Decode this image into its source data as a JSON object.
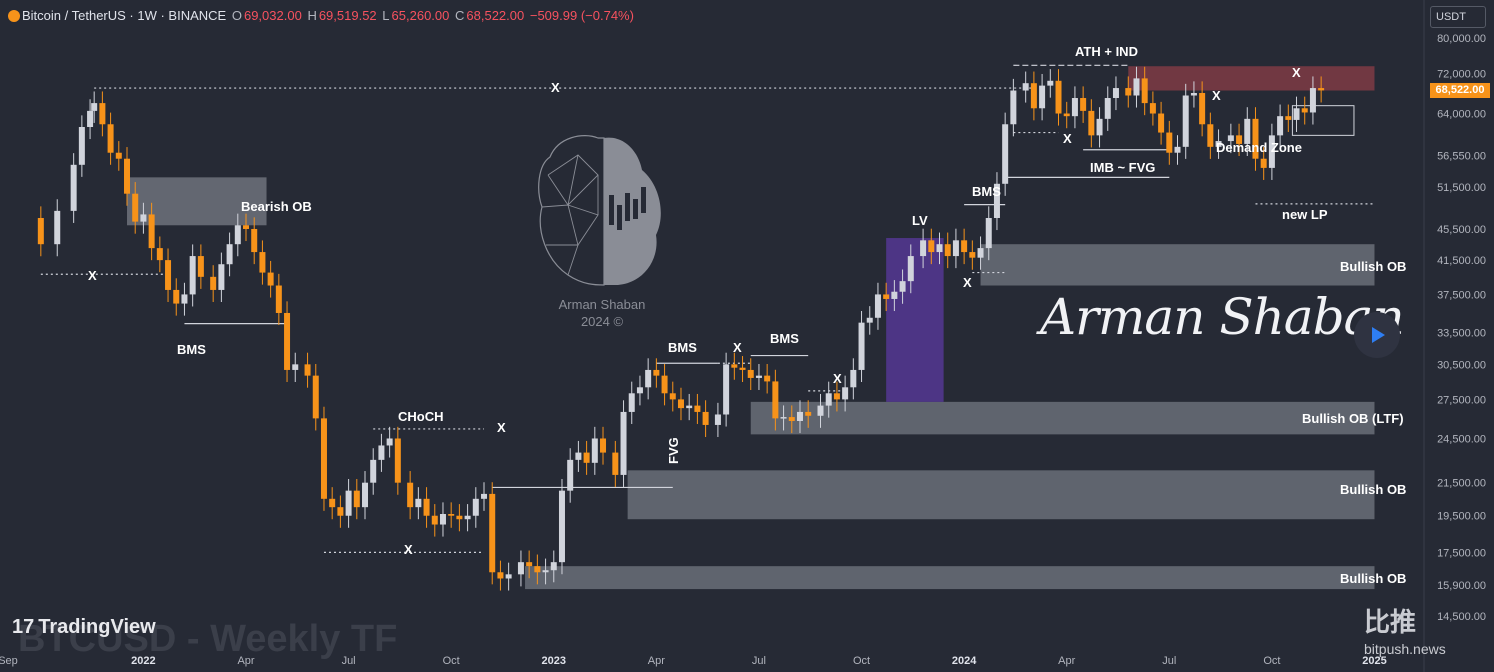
{
  "header": {
    "symbol": "Bitcoin / TetherUS · 1W · BINANCE",
    "open_label": "O",
    "open": "69,032.00",
    "high_label": "H",
    "high": "69,519.52",
    "low_label": "L",
    "low": "65,260.00",
    "close_label": "C",
    "close": "68,522.00",
    "change": "−509.99 (−0.74%)"
  },
  "currency_button": "USDT",
  "last_price_tag": "68,522.00",
  "branding": {
    "tradingview": "TradingView",
    "watermark": "BTCUSD - Weekly TF",
    "author_caption_line1": "Arman Shaban",
    "author_caption_line2": "2024 ©",
    "signature": "Arman Shaban",
    "bitpush_cn": "比推",
    "bitpush_url": "bitpush.news"
  },
  "colors": {
    "background": "#262a35",
    "bull": "#d1d4dc",
    "bear": "#f7931a",
    "zone": "#6a6e78",
    "supply_zone": "#7a3a44",
    "lv_zone": "#5b3aa0",
    "accent_play": "#2e7ef2"
  },
  "chart_data": {
    "type": "candlestick",
    "interval": "1W",
    "y_scale": "log",
    "y_axis_ticks": [
      80000,
      72000,
      64000,
      56550,
      51500,
      45500,
      41500,
      37500,
      33500,
      30500,
      27500,
      24500,
      21500,
      19500,
      17500,
      15900,
      14500
    ],
    "y_axis_tick_labels": [
      "80,000.00",
      "72,000.00",
      "64,000.00",
      "56,550.00",
      "51,500.00",
      "45,500.00",
      "41,500.00",
      "37,500.00",
      "33,500.00",
      "30,500.00",
      "27,500.00",
      "24,500.00",
      "21,500.00",
      "19,500.00",
      "17,500.00",
      "15,900.00",
      "14,500.00"
    ],
    "x_axis_labels": [
      "Sep",
      "2022",
      "Apr",
      "Jul",
      "Oct",
      "2023",
      "Apr",
      "Jul",
      "Oct",
      "2024",
      "Apr",
      "Jul",
      "Oct",
      "2025"
    ],
    "ohlc_latest": {
      "open": 69032.0,
      "high": 69519.52,
      "low": 65260.0,
      "close": 68522.0
    },
    "price_path": [
      [
        2021.69,
        47000
      ],
      [
        2021.75,
        43500
      ],
      [
        2021.79,
        48000
      ],
      [
        2021.83,
        55000
      ],
      [
        2021.85,
        61500
      ],
      [
        2021.87,
        64500
      ],
      [
        2021.88,
        66000
      ],
      [
        2021.9,
        62000
      ],
      [
        2021.92,
        57000
      ],
      [
        2021.94,
        56000
      ],
      [
        2021.96,
        50500
      ],
      [
        2021.98,
        46500
      ],
      [
        2022.0,
        47500
      ],
      [
        2022.02,
        43000
      ],
      [
        2022.04,
        41500
      ],
      [
        2022.06,
        38000
      ],
      [
        2022.08,
        36500
      ],
      [
        2022.1,
        37500
      ],
      [
        2022.12,
        42000
      ],
      [
        2022.14,
        39500
      ],
      [
        2022.17,
        38000
      ],
      [
        2022.19,
        41000
      ],
      [
        2022.21,
        43500
      ],
      [
        2022.23,
        46000
      ],
      [
        2022.25,
        45500
      ],
      [
        2022.27,
        42500
      ],
      [
        2022.29,
        40000
      ],
      [
        2022.31,
        38500
      ],
      [
        2022.33,
        35500
      ],
      [
        2022.35,
        30000
      ],
      [
        2022.37,
        30500
      ],
      [
        2022.4,
        29500
      ],
      [
        2022.42,
        26000
      ],
      [
        2022.44,
        20500
      ],
      [
        2022.46,
        20000
      ],
      [
        2022.48,
        19500
      ],
      [
        2022.5,
        21000
      ],
      [
        2022.52,
        20000
      ],
      [
        2022.54,
        21500
      ],
      [
        2022.56,
        23000
      ],
      [
        2022.58,
        24000
      ],
      [
        2022.6,
        24500
      ],
      [
        2022.62,
        21500
      ],
      [
        2022.65,
        20000
      ],
      [
        2022.67,
        20500
      ],
      [
        2022.69,
        19500
      ],
      [
        2022.71,
        19000
      ],
      [
        2022.73,
        19600
      ],
      [
        2022.75,
        19500
      ],
      [
        2022.77,
        19300
      ],
      [
        2022.79,
        19500
      ],
      [
        2022.81,
        20500
      ],
      [
        2022.83,
        20800
      ],
      [
        2022.85,
        16500
      ],
      [
        2022.87,
        16200
      ],
      [
        2022.89,
        16400
      ],
      [
        2022.92,
        17000
      ],
      [
        2022.94,
        16800
      ],
      [
        2022.96,
        16500
      ],
      [
        2022.98,
        16600
      ],
      [
        2023.0,
        17000
      ],
      [
        2023.02,
        21000
      ],
      [
        2023.04,
        23000
      ],
      [
        2023.06,
        23500
      ],
      [
        2023.08,
        22800
      ],
      [
        2023.1,
        24500
      ],
      [
        2023.12,
        23500
      ],
      [
        2023.15,
        22000
      ],
      [
        2023.17,
        26500
      ],
      [
        2023.19,
        28000
      ],
      [
        2023.21,
        28500
      ],
      [
        2023.23,
        30000
      ],
      [
        2023.25,
        29500
      ],
      [
        2023.27,
        28000
      ],
      [
        2023.29,
        27500
      ],
      [
        2023.31,
        26800
      ],
      [
        2023.33,
        27000
      ],
      [
        2023.35,
        26500
      ],
      [
        2023.37,
        25500
      ],
      [
        2023.4,
        26300
      ],
      [
        2023.42,
        30500
      ],
      [
        2023.44,
        30200
      ],
      [
        2023.46,
        30000
      ],
      [
        2023.48,
        29300
      ],
      [
        2023.5,
        29500
      ],
      [
        2023.52,
        29000
      ],
      [
        2023.54,
        26000
      ],
      [
        2023.56,
        26100
      ],
      [
        2023.58,
        25800
      ],
      [
        2023.6,
        26500
      ],
      [
        2023.62,
        26200
      ],
      [
        2023.65,
        27000
      ],
      [
        2023.67,
        28000
      ],
      [
        2023.69,
        27500
      ],
      [
        2023.71,
        28500
      ],
      [
        2023.73,
        30000
      ],
      [
        2023.75,
        34500
      ],
      [
        2023.77,
        35000
      ],
      [
        2023.79,
        37500
      ],
      [
        2023.81,
        37000
      ],
      [
        2023.83,
        37800
      ],
      [
        2023.85,
        39000
      ],
      [
        2023.87,
        42000
      ],
      [
        2023.9,
        44000
      ],
      [
        2023.92,
        42500
      ],
      [
        2023.94,
        43500
      ],
      [
        2023.96,
        42000
      ],
      [
        2023.98,
        44000
      ],
      [
        2024.0,
        42500
      ],
      [
        2024.02,
        41800
      ],
      [
        2024.04,
        43000
      ],
      [
        2024.06,
        47000
      ],
      [
        2024.08,
        52000
      ],
      [
        2024.1,
        62000
      ],
      [
        2024.12,
        68500
      ],
      [
        2024.15,
        70000
      ],
      [
        2024.17,
        65000
      ],
      [
        2024.19,
        69500
      ],
      [
        2024.21,
        70500
      ],
      [
        2024.23,
        64000
      ],
      [
        2024.25,
        63500
      ],
      [
        2024.27,
        67000
      ],
      [
        2024.29,
        64500
      ],
      [
        2024.31,
        60000
      ],
      [
        2024.33,
        63000
      ],
      [
        2024.35,
        67000
      ],
      [
        2024.37,
        69000
      ],
      [
        2024.4,
        67500
      ],
      [
        2024.42,
        71000
      ],
      [
        2024.44,
        66000
      ],
      [
        2024.46,
        64000
      ],
      [
        2024.48,
        60500
      ],
      [
        2024.5,
        57000
      ],
      [
        2024.52,
        58000
      ],
      [
        2024.54,
        67500
      ],
      [
        2024.56,
        68000
      ],
      [
        2024.58,
        62000
      ],
      [
        2024.6,
        58000
      ],
      [
        2024.62,
        59000
      ],
      [
        2024.65,
        60000
      ],
      [
        2024.67,
        58500
      ],
      [
        2024.69,
        63000
      ],
      [
        2024.71,
        56000
      ],
      [
        2024.73,
        54500
      ],
      [
        2024.75,
        60000
      ],
      [
        2024.77,
        63500
      ],
      [
        2024.79,
        62800
      ],
      [
        2024.81,
        65000
      ],
      [
        2024.83,
        64200
      ],
      [
        2024.85,
        69000
      ],
      [
        2024.87,
        68522
      ]
    ],
    "annotations": [
      "ATH + IND",
      "Bearish OB",
      "BMS",
      "BMS",
      "BMS",
      "BMS",
      "CHoCH",
      "FVG",
      "LV",
      "IMB ~ FVG",
      "Demand Zone",
      "new LP",
      "Bullish OB",
      "Bullish OB (LTF)",
      "Bullish OB",
      "Bullish OB",
      "X",
      "X",
      "X",
      "X",
      "X",
      "X",
      "X",
      "X",
      "X",
      "X"
    ],
    "zones": [
      {
        "label": "Bearish OB",
        "kind": "bearish-ob",
        "price_low": 46000,
        "price_high": 53000,
        "from": 2021.96,
        "to": 2022.3
      },
      {
        "label": "Bullish OB",
        "kind": "bullish-ob",
        "price_low": 38500,
        "price_high": 43500,
        "from": 2024.04,
        "to": 2025.0
      },
      {
        "label": "Bullish OB (LTF)",
        "kind": "bullish-ob",
        "price_low": 24800,
        "price_high": 27300,
        "from": 2023.48,
        "to": 2025.0
      },
      {
        "label": "Bullish OB",
        "kind": "bullish-ob",
        "price_low": 19300,
        "price_high": 22300,
        "from": 2023.18,
        "to": 2025.0
      },
      {
        "label": "Bullish OB",
        "kind": "bullish-ob",
        "price_low": 15700,
        "price_high": 16800,
        "from": 2022.93,
        "to": 2025.0
      },
      {
        "label": "",
        "kind": "supply",
        "price_low": 68500,
        "price_high": 73600,
        "from": 2024.4,
        "to": 2025.0
      },
      {
        "label": "LV",
        "kind": "lv",
        "price_low": 27300,
        "price_high": 44300,
        "from": 2023.81,
        "to": 2023.95
      },
      {
        "label": "Demand Zone",
        "kind": "demand",
        "price_low": 60000,
        "price_high": 65500,
        "from": 2024.8,
        "to": 2024.95
      }
    ],
    "levels": [
      {
        "label": "X",
        "price": 69000,
        "from": 2021.88,
        "to": 2024.17,
        "style": "dotted"
      },
      {
        "label": "X",
        "price": 39800,
        "from": 2021.75,
        "to": 2022.06,
        "style": "dotted"
      },
      {
        "label": "BMS",
        "price": 34400,
        "from": 2022.1,
        "to": 2022.35,
        "style": "solid"
      },
      {
        "label": "CHoCH",
        "price": 25200,
        "from": 2022.56,
        "to": 2022.83,
        "style": "dotted"
      },
      {
        "label": "X",
        "price": 17500,
        "from": 2022.44,
        "to": 2022.83,
        "style": "dotted"
      },
      {
        "label": "",
        "price": 21200,
        "from": 2022.85,
        "to": 2023.29,
        "style": "solid"
      },
      {
        "label": "BMS",
        "price": 30600,
        "from": 2023.25,
        "to": 2023.4,
        "style": "solid"
      },
      {
        "label": "X",
        "price": 30600,
        "from": 2023.4,
        "to": 2023.48,
        "style": "dotted"
      },
      {
        "label": "BMS",
        "price": 31300,
        "from": 2023.48,
        "to": 2023.62,
        "style": "solid"
      },
      {
        "label": "X",
        "price": 28200,
        "from": 2023.62,
        "to": 2023.71,
        "style": "dotted"
      },
      {
        "label": "X",
        "price": 40000,
        "from": 2024.02,
        "to": 2024.1,
        "style": "dotted"
      },
      {
        "label": "BMS",
        "price": 48900,
        "from": 2024.0,
        "to": 2024.1,
        "style": "solid"
      },
      {
        "label": "",
        "price": 53000,
        "from": 2024.1,
        "to": 2024.5,
        "style": "solid"
      },
      {
        "label": "X",
        "price": 60500,
        "from": 2024.12,
        "to": 2024.23,
        "style": "dotted"
      },
      {
        "label": "ATH + IND",
        "price": 73800,
        "from": 2024.12,
        "to": 2024.4,
        "style": "dashed"
      },
      {
        "label": "IMB ~ FVG",
        "price": 57500,
        "from": 2024.29,
        "to": 2024.5,
        "style": "solid"
      },
      {
        "label": "new LP",
        "price": 49000,
        "from": 2024.71,
        "to": 2025.0,
        "style": "dotted"
      }
    ]
  }
}
